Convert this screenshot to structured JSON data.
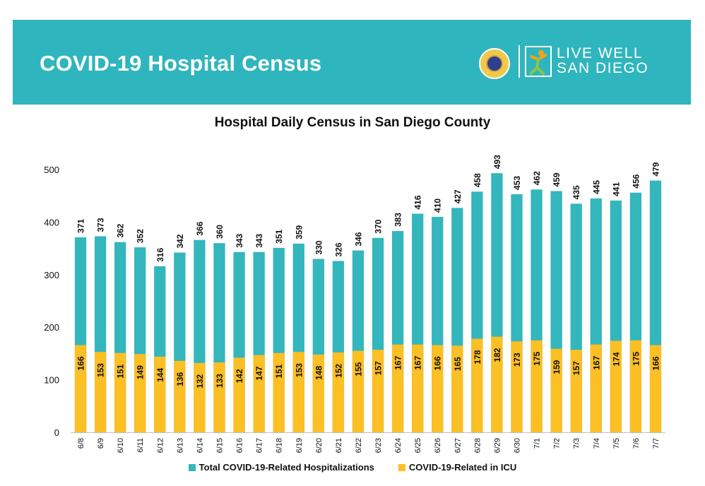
{
  "header": {
    "title": "COVID-19 Hospital Census",
    "logo_line1": "LIVE WELL",
    "logo_line2": "SAN DIEGO"
  },
  "colors": {
    "banner": "#2fb5bd",
    "total": "#34b6bd",
    "icu": "#fcbf24"
  },
  "chart_data": {
    "type": "bar",
    "stacked": "overlay",
    "title": "Hospital Daily Census in San Diego County",
    "xlabel": "",
    "ylabel": "",
    "ylim": [
      0,
      500
    ],
    "yticks": [
      0,
      100,
      200,
      300,
      400,
      500
    ],
    "grid": false,
    "legend_position": "bottom",
    "categories": [
      "6/8",
      "6/9",
      "6/10",
      "6/11",
      "6/12",
      "6/13",
      "6/14",
      "6/15",
      "6/16",
      "6/17",
      "6/18",
      "6/19",
      "6/20",
      "6/21",
      "6/22",
      "6/23",
      "6/24",
      "6/25",
      "6/26",
      "6/27",
      "6/28",
      "6/29",
      "6/30",
      "7/1",
      "7/2",
      "7/3",
      "7/4",
      "7/5",
      "7/6",
      "7/7"
    ],
    "series": [
      {
        "name": "Total COVID-19-Related Hospitalizations",
        "values": [
          371,
          373,
          362,
          352,
          316,
          342,
          366,
          360,
          343,
          343,
          351,
          359,
          330,
          326,
          346,
          370,
          383,
          416,
          410,
          427,
          458,
          493,
          453,
          462,
          459,
          435,
          445,
          441,
          456,
          479
        ]
      },
      {
        "name": "COVID-19-Related in ICU",
        "values": [
          166,
          153,
          151,
          149,
          144,
          136,
          132,
          133,
          142,
          147,
          151,
          153,
          148,
          152,
          155,
          157,
          167,
          167,
          166,
          165,
          178,
          182,
          173,
          175,
          159,
          157,
          167,
          174,
          175,
          166
        ]
      }
    ]
  }
}
